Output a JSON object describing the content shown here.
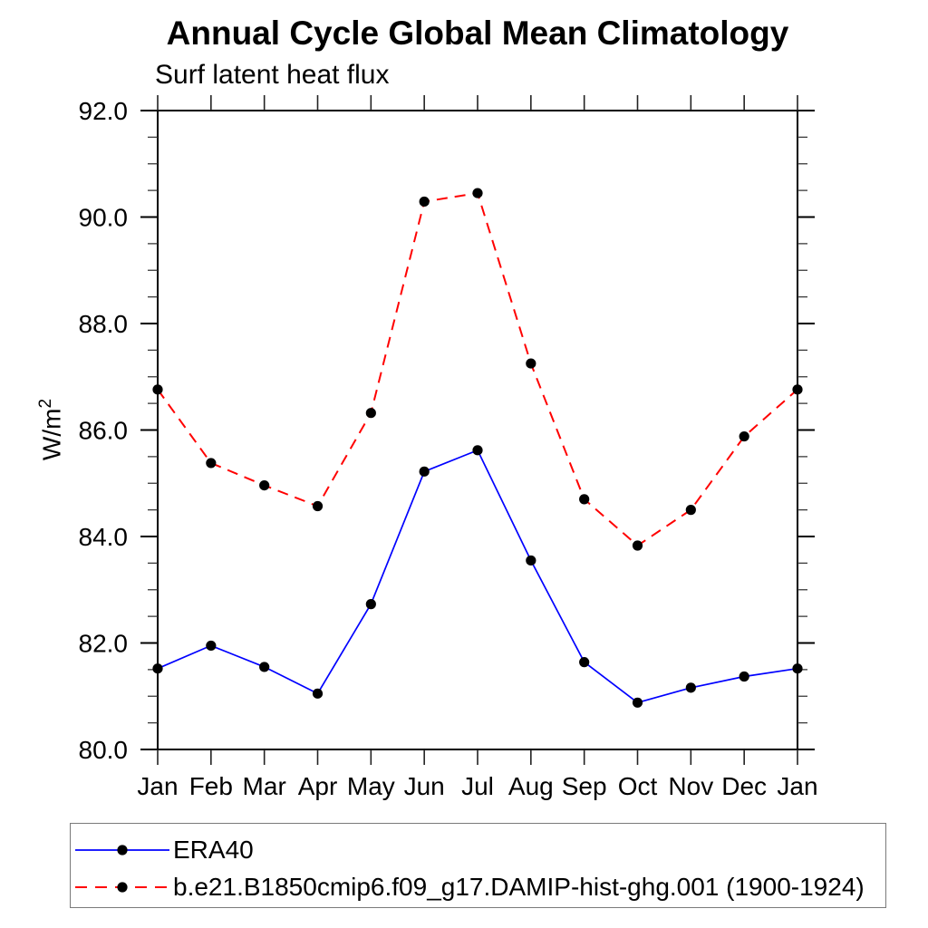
{
  "chart_data": {
    "type": "line",
    "title": "Annual Cycle Global Mean Climatology",
    "subtitle": "Surf latent heat flux",
    "ylabel_base": "W/m",
    "ylabel_sup": "2",
    "xlabel": "",
    "categories": [
      "Jan",
      "Feb",
      "Mar",
      "Apr",
      "May",
      "Jun",
      "Jul",
      "Aug",
      "Sep",
      "Oct",
      "Nov",
      "Dec",
      "Jan"
    ],
    "ylim": [
      80.0,
      92.0
    ],
    "ytick_major": 2.0,
    "ytick_minor": 0.5,
    "ytick_label_format": "one_decimal",
    "grid": false,
    "legend_position": "bottom-left-box",
    "axis_color": "#000000",
    "marker_color": "#000000",
    "series": [
      {
        "name": "ERA40",
        "color": "#0000ff",
        "line_style": "solid",
        "marker": "black-circle",
        "values": [
          81.52,
          81.95,
          81.55,
          81.05,
          82.73,
          85.22,
          85.62,
          83.55,
          81.64,
          80.88,
          81.16,
          81.37,
          81.52
        ]
      },
      {
        "name": "b.e21.B1850cmip6.f09_g17.DAMIP-hist-ghg.001 (1900-1924)",
        "color": "#ff0000",
        "line_style": "dashed",
        "marker": "black-circle",
        "values": [
          86.76,
          85.38,
          84.96,
          84.57,
          86.32,
          90.29,
          90.45,
          87.25,
          84.7,
          83.83,
          84.5,
          85.88,
          86.76
        ]
      }
    ]
  }
}
